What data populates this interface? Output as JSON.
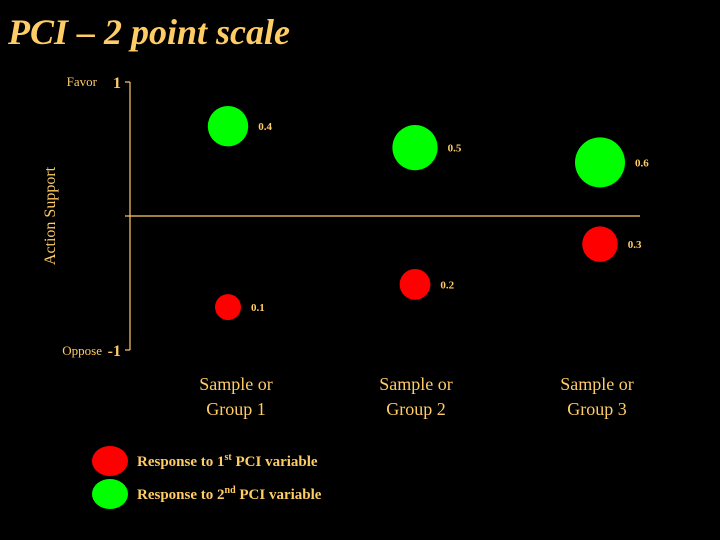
{
  "slide": {
    "title": "PCI – 2 point scale"
  },
  "chart_data": {
    "type": "scatter",
    "subtype": "bubble",
    "title": "PCI – 2 point scale",
    "ylabel": "Action Support",
    "ylim": [
      -1,
      1
    ],
    "y_tick_labels": {
      "top": "1",
      "bottom": "-1",
      "top_word": "Favor",
      "bottom_word": "Oppose"
    },
    "categories": [
      "Sample or Group 1",
      "Sample or Group 2",
      "Sample or Group 3"
    ],
    "categories_lines": [
      [
        "Sample or",
        "Group 1"
      ],
      [
        "Sample or",
        "Group 2"
      ],
      [
        "Sample or",
        "Group 3"
      ]
    ],
    "series": [
      {
        "name": "Response to 1st PCI variable",
        "legend_base": "Response to 1",
        "legend_sup": "st",
        "legend_tail": " PCI variable",
        "color": "#ff0000",
        "points": [
          {
            "y": -0.68,
            "size": 0.1
          },
          {
            "y": -0.51,
            "size": 0.2
          },
          {
            "y": -0.21,
            "size": 0.3
          }
        ]
      },
      {
        "name": "Response to 2nd PCI variable",
        "legend_base": "Response to 2",
        "legend_sup": "nd",
        "legend_tail": " PCI variable",
        "color": "#00ff00",
        "points": [
          {
            "y": 0.67,
            "size": 0.4
          },
          {
            "y": 0.51,
            "size": 0.5
          },
          {
            "y": 0.4,
            "size": 0.6
          }
        ]
      }
    ],
    "grid": false,
    "legend_position": "bottom-left",
    "axis_color": "#ffcc66",
    "text_color": "#ffcc66"
  }
}
